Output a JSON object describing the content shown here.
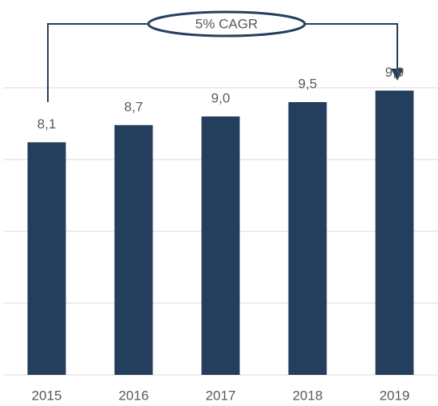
{
  "chart_data": {
    "type": "bar",
    "categories": [
      "2015",
      "2016",
      "2017",
      "2018",
      "2019"
    ],
    "values": [
      8.1,
      8.7,
      9.0,
      9.5,
      9.9
    ],
    "value_labels": [
      "8,1",
      "8,7",
      "9,0",
      "9,5",
      "9,9"
    ],
    "color": "#243f5e",
    "ylim": [
      0,
      10
    ],
    "yticks": [
      0,
      2.5,
      5,
      7.5,
      10
    ],
    "grid": true,
    "annotation": "5% CAGR"
  }
}
